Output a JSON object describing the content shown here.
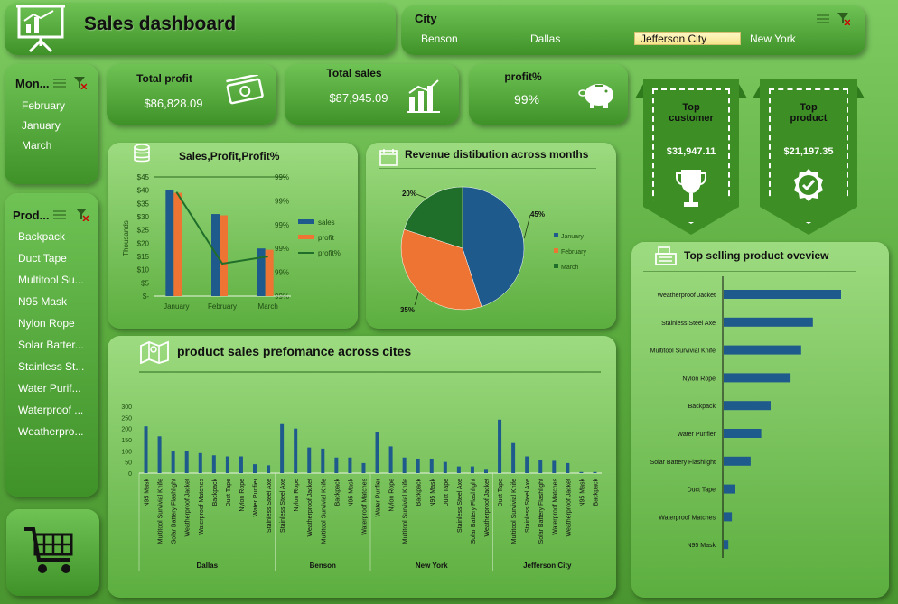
{
  "header": {
    "title": "Sales dashboard",
    "icon": "presentation-board-icon"
  },
  "city_slicer": {
    "title": "City",
    "items": [
      "Benson",
      "Dallas",
      "Jefferson City",
      "New York"
    ],
    "selected": "Jefferson City"
  },
  "month_slicer": {
    "title": "Mon...",
    "items": [
      "February",
      "January",
      "March"
    ]
  },
  "product_slicer": {
    "title": "Prod...",
    "items": [
      "Backpack",
      "Duct Tape",
      "Multitool Su...",
      "N95 Mask",
      "Nylon Rope",
      "Solar Batter...",
      "Stainless St...",
      "Water Purif...",
      "Waterproof ...",
      "Weatherpro..."
    ]
  },
  "kpis": {
    "total_profit": {
      "label": "Total profit",
      "value": "$86,828.09"
    },
    "total_sales": {
      "label": "Total sales",
      "value": "$87,945.09"
    },
    "profit_pct": {
      "label": "profit%",
      "value": "99%"
    }
  },
  "top_customer": {
    "label_line1": "Top",
    "label_line2": "customer",
    "value": "$31,947.11"
  },
  "top_product": {
    "label_line1": "Top",
    "label_line2": "product",
    "value": "$21,197.35"
  },
  "chart_spp": {
    "title": "Sales,Profit,Profit%",
    "ylabel": "Thousands"
  },
  "chart_rev": {
    "title": "Revenue distibution across months"
  },
  "chart_cities": {
    "title": "product sales prefomance across cites"
  },
  "chart_top": {
    "title": "Top selling product oveview"
  },
  "colors": {
    "blue": "#1f5a8c",
    "orange": "#ed7432",
    "darkgreen": "#1f6e2a",
    "panel_green": "#4f9f36"
  },
  "chart_data": [
    {
      "type": "bar",
      "title": "Sales,Profit,Profit%",
      "categories": [
        "January",
        "February",
        "March"
      ],
      "series": [
        {
          "name": "sales",
          "values": [
            40,
            31,
            18
          ]
        },
        {
          "name": "profit",
          "values": [
            39,
            30.5,
            17.5
          ]
        },
        {
          "name": "profit%",
          "values": [
            0.99,
            0.99,
            0.99
          ]
        }
      ],
      "ylim": [
        0,
        45
      ],
      "yticks": [
        "$-",
        "$5",
        "$10",
        "$15",
        "$20",
        "$25",
        "$30",
        "$35",
        "$40",
        "$45"
      ],
      "y2ticks": [
        "99%",
        "99%",
        "99%",
        "99%",
        "99%",
        "99%"
      ],
      "ylabel": "Thousands"
    },
    {
      "type": "pie",
      "title": "Revenue distibution across months",
      "categories": [
        "January",
        "February",
        "March"
      ],
      "values": [
        45,
        35,
        20
      ],
      "labels": [
        "45%",
        "35%",
        "20%"
      ]
    },
    {
      "type": "bar",
      "title": "product sales prefomance across cites",
      "ylim": [
        0,
        300
      ],
      "yticks": [
        "0",
        "50",
        "100",
        "150",
        "200",
        "250",
        "300"
      ],
      "groups": [
        {
          "name": "Dallas",
          "items": [
            "N95 Mask",
            "Multitool Survivial Knife",
            "Solar Battery Flashlight",
            "Weatherproof Jacket",
            "Waterproof Matches",
            "Backpack",
            "Duct Tape",
            "Nylon Rope",
            "Water Purifier",
            "Stainless Steel Axe"
          ],
          "values": [
            210,
            165,
            100,
            100,
            90,
            80,
            75,
            75,
            40,
            35
          ]
        },
        {
          "name": "Benson",
          "items": [
            "Stainless Steel Axe",
            "Nylon Rope",
            "Weatherproof Jacket",
            "Multitool Survivial Knife",
            "Backpack",
            "N95 Mask",
            "Waterproof Matches"
          ],
          "values": [
            220,
            200,
            115,
            110,
            70,
            70,
            45
          ]
        },
        {
          "name": "New York",
          "items": [
            "Water Purifier",
            "Nylon Rope",
            "Multitool Survivial Knife",
            "Backpack",
            "N95 Mask",
            "Duct Tape",
            "Stainless Steel Axe",
            "Solar Battery Flashlight",
            "Weatherproof Jacket"
          ],
          "values": [
            185,
            120,
            70,
            65,
            65,
            50,
            30,
            30,
            15
          ]
        },
        {
          "name": "Jefferson City",
          "items": [
            "Duct Tape",
            "Multitool Survivial Knife",
            "Stainless Steel Axe",
            "Solar Battery Flashlight",
            "Waterproof Matches",
            "Weatherproof Jacket",
            "N95 Mask",
            "Backpack"
          ],
          "values": [
            240,
            135,
            75,
            60,
            55,
            45,
            5,
            5
          ]
        }
      ]
    },
    {
      "type": "bar",
      "title": "Top selling product oveview",
      "orientation": "horizontal",
      "categories": [
        "Weatherproof Jacket",
        "Stainless Steel Axe",
        "Multitool Survivial Knife",
        "Nylon Rope",
        "Backpack",
        "Water Purifier",
        "Solar Battery Flashlight",
        "Duct Tape",
        "Waterproof Matches",
        "N95 Mask"
      ],
      "values": [
        100,
        76,
        66,
        57,
        40,
        32,
        23,
        10,
        7,
        4
      ]
    }
  ]
}
